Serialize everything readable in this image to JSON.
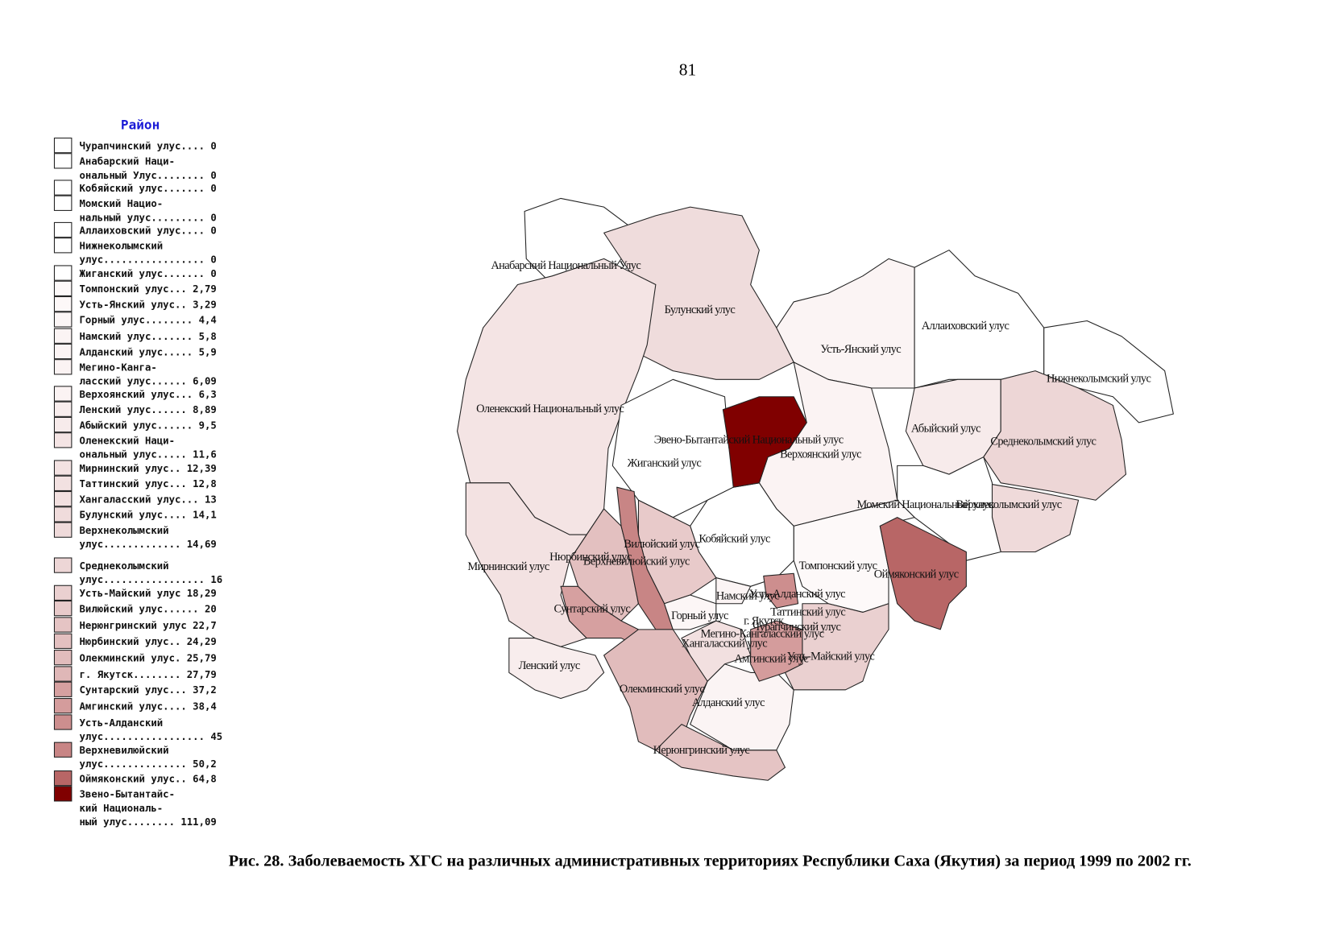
{
  "page_number": "81",
  "legend": {
    "title": "Район",
    "items": [
      {
        "lines": [
          "Чурапчинский улус.... 0"
        ],
        "color": "#ffffff"
      },
      {
        "lines": [
          "Анабарский Наци-",
          "ональный Улус........ 0"
        ],
        "color": "#ffffff"
      },
      {
        "lines": [
          "Кобяйский улус....... 0"
        ],
        "color": "#ffffff"
      },
      {
        "lines": [
          "Момский Нацио-",
          "нальный улус......... 0"
        ],
        "color": "#ffffff"
      },
      {
        "lines": [
          "Аллаиховский улус.... 0"
        ],
        "color": "#ffffff"
      },
      {
        "lines": [
          "Нижнеколымский",
          "улус................. 0"
        ],
        "color": "#ffffff"
      },
      {
        "lines": [
          "Жиганский улус....... 0"
        ],
        "color": "#ffffff"
      },
      {
        "lines": [
          "Томпонский улус... 2,79"
        ],
        "color": "#fdf9f9"
      },
      {
        "lines": [
          "Усть-Янский улус.. 3,29"
        ],
        "color": "#fdf8f8"
      },
      {
        "lines": [
          "Горный улус........ 4,4"
        ],
        "color": "#fcf6f6"
      },
      {
        "lines": [
          "Намский улус....... 5,8"
        ],
        "color": "#fbf4f4"
      },
      {
        "lines": [
          "Алданский улус..... 5,9"
        ],
        "color": "#fbf4f4"
      },
      {
        "lines": [
          "Мегино-Канга-",
          "ласский улус...... 6,09"
        ],
        "color": "#fbf3f3"
      },
      {
        "lines": [
          "Верхоянский улус... 6,3"
        ],
        "color": "#fbf3f3"
      },
      {
        "lines": [
          "Ленский улус...... 8,89"
        ],
        "color": "#f8eded"
      },
      {
        "lines": [
          "Абыйский улус...... 9,5"
        ],
        "color": "#f7ebeb"
      },
      {
        "lines": [
          "Оленекский Наци-",
          "ональный улус..... 11,6"
        ],
        "color": "#f4e4e4"
      },
      {
        "lines": [
          "Мирнинский улус.. 12,39"
        ],
        "color": "#f3e2e2"
      },
      {
        "lines": [
          "Таттинский улус... 12,8"
        ],
        "color": "#f2e1e1"
      },
      {
        "lines": [
          "Хангаласский улус... 13"
        ],
        "color": "#f2e0e0"
      },
      {
        "lines": [
          "Булунский улус.... 14,1"
        ],
        "color": "#f0dcdc"
      },
      {
        "lines": [
          "Верхнеколымский",
          "улус............. 14,69"
        ],
        "color": "#efdada"
      },
      {
        "lines": [
          "Среднеколымский",
          "улус................. 16"
        ],
        "color": "#edd6d6"
      },
      {
        "lines": [
          "Усть-Майский улус 18,29"
        ],
        "color": "#ead0d0"
      },
      {
        "lines": [
          "Вилюйский улус...... 20"
        ],
        "color": "#e8caca"
      },
      {
        "lines": [
          "Нерюнгринский улус 22,7"
        ],
        "color": "#e5c4c4"
      },
      {
        "lines": [
          "Нюрбинский улус.. 24,29"
        ],
        "color": "#e3c0c0"
      },
      {
        "lines": [
          "Олекминский улус. 25,79"
        ],
        "color": "#e1bcbc"
      },
      {
        "lines": [
          "г. Якутск........ 27,79"
        ],
        "color": "#dfb7b7"
      },
      {
        "lines": [
          "Сунтарский улус... 37,2"
        ],
        "color": "#d6a0a0"
      },
      {
        "lines": [
          "Амгинский улус.... 38,4"
        ],
        "color": "#d49c9c"
      },
      {
        "lines": [
          "Усть-Алданский",
          "улус................. 45"
        ],
        "color": "#cd8e8e"
      },
      {
        "lines": [
          "Верхневилюйский",
          "улус.............. 50,2"
        ],
        "color": "#c88585"
      },
      {
        "lines": [
          "Оймяконский улус.. 64,8"
        ],
        "color": "#b86666"
      },
      {
        "lines": [
          "Звено-Бытантайс-",
          "кий Националь-",
          "ный улус........ 111,09"
        ],
        "color": "#800000"
      }
    ]
  },
  "map": {
    "labels": [
      "Анабарский Национальный Улус",
      "Булунский улус",
      "Аллаиховский улус",
      "Усть-Янский улус",
      "Нижнеколымский улус",
      "Оленекский Национальный улус",
      "Абыйский улус",
      "Эвено-Бытантайский Национальный улус",
      "Среднеколымский улус",
      "Верхоянский улус",
      "Жиганский улус",
      "Момский Национальный улус",
      "Верхнеколымский улус",
      "Кобяйский улус",
      "Вилюйский улус",
      "Нюрбинский улус",
      "Верхневилюйский улус",
      "Мирнинский улус",
      "Томпонский улус",
      "Оймяконский улус",
      "Намский улус",
      "Усть-Алданский улус",
      "Сунтарский улус",
      "Горный улус",
      "Таттинский улус",
      "г. Якутск",
      "Чурапчинский улус",
      "Мегино-Кангаласский улус",
      "Хангаласский улус",
      "Амгинский улус",
      "Усть-Майский улус",
      "Ленский улус",
      "Олекминский улус",
      "Алданский улус",
      "Нерюнгринский улус"
    ]
  },
  "caption": "Рис. 28. Заболеваемость ХГС на различных административных территориях Республики Саха (Якутия) за период 1999 по 2002 гг."
}
